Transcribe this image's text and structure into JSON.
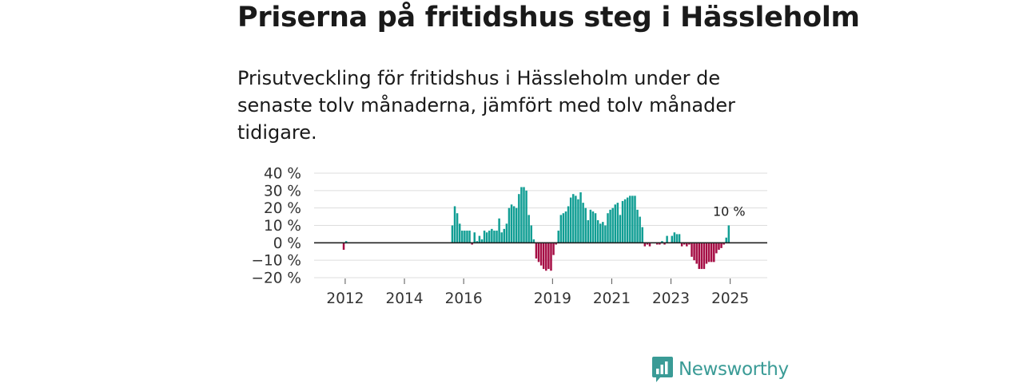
{
  "title": "Priserna på fritidshus steg i Hässleholm",
  "subtitle": "Prisutveckling för fritidshus i Hässleholm under de senaste tolv månaderna, jämfört med tolv månader tidigare.",
  "brand": {
    "name": "Newsworthy"
  },
  "colors": {
    "positive": "#119e94",
    "negative": "#a50d44",
    "zero_line": "#222222",
    "grid": "#dddddd"
  },
  "chart_data": {
    "type": "bar",
    "title": "Priserna på fritidshus steg i Hässleholm",
    "ylabel": "",
    "xlabel": "",
    "ylim": [
      -20,
      40
    ],
    "yticks": [
      40,
      30,
      20,
      10,
      0,
      -10,
      -20
    ],
    "ytick_labels": [
      "40 %",
      "30 %",
      "20 %",
      "10 %",
      "0 %",
      "−10 %",
      "−20 %"
    ],
    "xticks": [
      2012,
      2014,
      2016,
      2019,
      2021,
      2023,
      2025
    ],
    "xtick_labels": [
      "2012",
      "2014",
      "2016",
      "2019",
      "2021",
      "2023",
      "2025"
    ],
    "start": "2011-07",
    "annotation": {
      "label": "10 %",
      "value": 10
    },
    "values": [
      null,
      null,
      null,
      null,
      null,
      null,
      -4,
      1,
      null,
      null,
      null,
      null,
      null,
      null,
      null,
      null,
      null,
      null,
      null,
      null,
      null,
      null,
      null,
      null,
      null,
      null,
      null,
      null,
      null,
      null,
      null,
      null,
      null,
      null,
      null,
      null,
      null,
      null,
      null,
      null,
      null,
      null,
      null,
      null,
      null,
      null,
      null,
      null,
      null,
      null,
      10,
      21,
      17,
      11,
      7,
      7,
      7,
      7,
      -1,
      6,
      1,
      4,
      2,
      7,
      6,
      7,
      8,
      7,
      7,
      14,
      6,
      8,
      11,
      20,
      22,
      21,
      20,
      28,
      32,
      32,
      30,
      16,
      10,
      2,
      -9,
      -11,
      -13,
      -15,
      -16,
      -15,
      -16,
      -7,
      -1,
      7,
      16,
      17,
      18,
      21,
      26,
      28,
      27,
      25,
      29,
      23,
      20,
      13,
      19,
      18,
      17,
      13,
      11,
      12,
      10,
      17,
      19,
      20,
      22,
      23,
      16,
      24,
      25,
      26,
      27,
      27,
      27,
      19,
      15,
      9,
      -2,
      -1,
      -2,
      null,
      null,
      -1,
      -1,
      1,
      -1,
      4,
      null,
      4,
      6,
      5,
      5,
      -2,
      -1,
      -2,
      -1,
      -8,
      -10,
      -12,
      -15,
      -15,
      -15,
      -12,
      -11,
      -11,
      -11,
      -6,
      -4,
      -3,
      -1,
      3,
      10
    ]
  }
}
